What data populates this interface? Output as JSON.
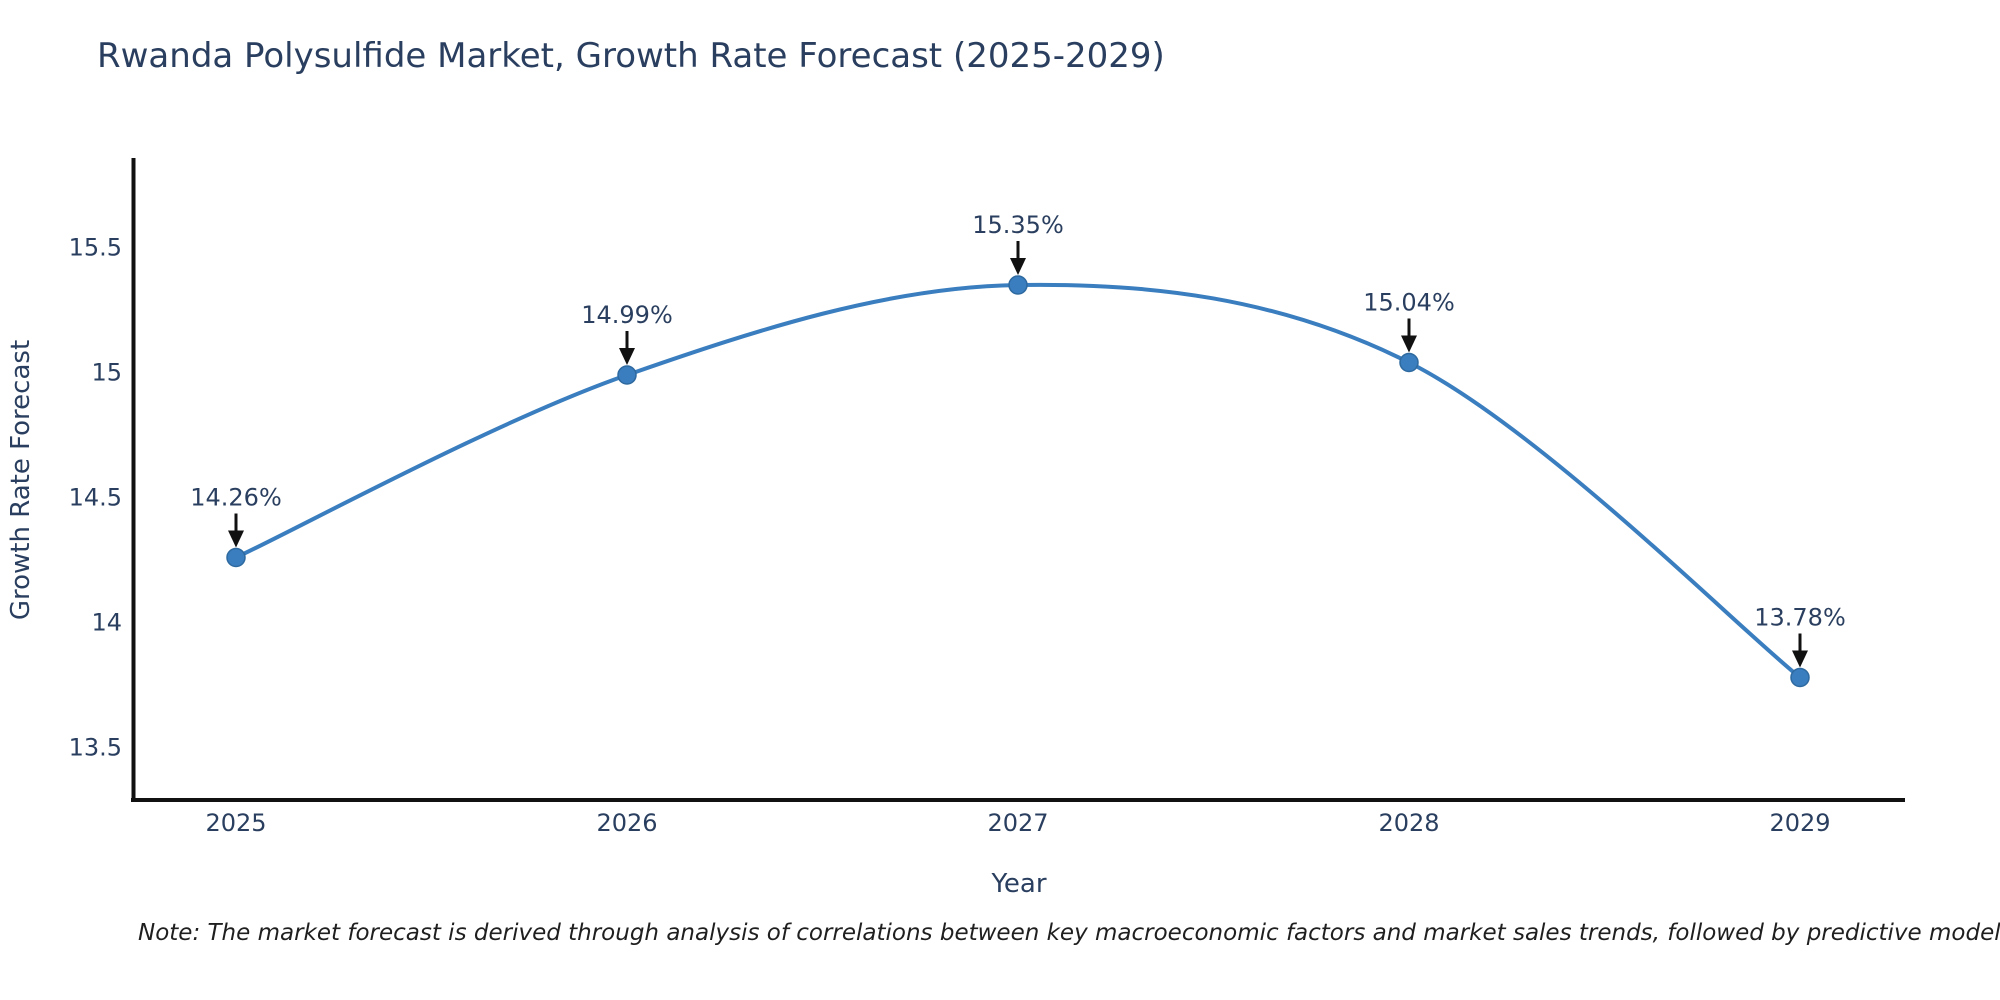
{
  "title": "Rwanda Polysulfide Market, Growth Rate Forecast (2025-2029)",
  "note": "Note: The market forecast is derived through analysis of correlations between key macroeconomic factors and market sales trends, followed by predictive modeling to project future sal",
  "chart_data": {
    "type": "line",
    "line_shape": "spline",
    "title": "Rwanda Polysulfide Market, Growth Rate Forecast (2025-2029)",
    "xlabel": "Year",
    "ylabel": "Growth Rate Forecast",
    "categories": [
      "2025",
      "2026",
      "2027",
      "2028",
      "2029"
    ],
    "x": [
      2025,
      2026,
      2027,
      2028,
      2029
    ],
    "series": [
      {
        "name": "Growth Rate Forecast",
        "values": [
          14.26,
          14.99,
          15.35,
          15.04,
          13.78
        ]
      }
    ],
    "annotations": [
      "14.26%",
      "14.99%",
      "15.35%",
      "15.04%",
      "13.78%"
    ],
    "ytick_labels": [
      "13.5",
      "14",
      "14.5",
      "15",
      "15.5"
    ],
    "yticks": [
      13.5,
      14,
      14.5,
      15,
      15.5
    ],
    "ylim": [
      13.29,
      15.85
    ],
    "grid": false,
    "legend": "none",
    "colors": {
      "line": "#3a7ebf",
      "marker": "#3a7ebf",
      "marker_edge": "#2e699f",
      "axis": "#111111",
      "arrow": "#111111",
      "text": "#2a3f5f"
    }
  }
}
